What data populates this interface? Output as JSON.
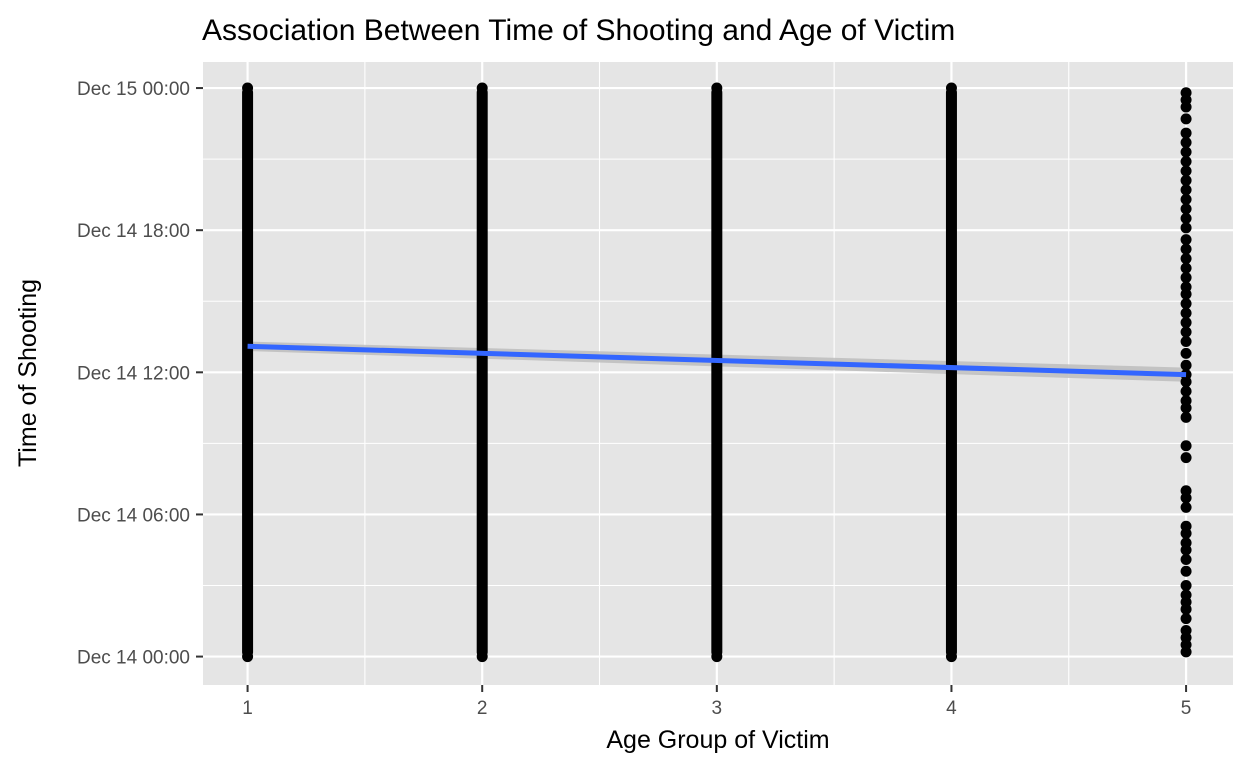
{
  "chart_data": {
    "type": "scatter",
    "title": "Association Between Time of Shooting and Age of Victim",
    "xlabel": "Age Group of Victim",
    "ylabel": "Time of Shooting",
    "x_ticks": [
      {
        "value": 1,
        "label": "1"
      },
      {
        "value": 2,
        "label": "2"
      },
      {
        "value": 3,
        "label": "3"
      },
      {
        "value": 4,
        "label": "4"
      },
      {
        "value": 5,
        "label": "5"
      }
    ],
    "y_ticks": [
      {
        "value": 0,
        "label": "Dec 14 00:00"
      },
      {
        "value": 6,
        "label": "Dec 14 06:00"
      },
      {
        "value": 12,
        "label": "Dec 14 12:00"
      },
      {
        "value": 18,
        "label": "Dec 14 18:00"
      },
      {
        "value": 24,
        "label": "Dec 15 00:00"
      }
    ],
    "xlim": [
      0.81,
      5.2
    ],
    "ylim": [
      -1.2,
      25.1
    ],
    "grid": true,
    "series": [
      {
        "kind": "points",
        "points": [
          {
            "x": 1,
            "y_range": [
              0,
              24
            ],
            "density": "dense"
          },
          {
            "x": 2,
            "y_range": [
              0,
              24
            ],
            "density": "dense"
          },
          {
            "x": 3,
            "y_range": [
              0,
              24
            ],
            "density": "dense"
          },
          {
            "x": 4,
            "y_range": [
              0,
              24
            ],
            "density": "dense"
          },
          {
            "x": 5,
            "y_values": [
              0.2,
              0.5,
              0.8,
              1.1,
              1.6,
              2.0,
              2.3,
              2.6,
              3.0,
              3.6,
              4.1,
              4.5,
              4.8,
              5.2,
              5.5,
              6.3,
              6.7,
              7.0,
              8.4,
              8.9,
              10.1,
              10.5,
              10.8,
              11.2,
              11.6,
              11.9,
              12.3,
              12.8,
              13.3,
              13.7,
              14.1,
              14.5,
              14.9,
              15.3,
              15.6,
              16.0,
              16.4,
              16.8,
              17.2,
              17.6,
              18.1,
              18.5,
              18.9,
              19.3,
              19.7,
              20.1,
              20.5,
              20.9,
              21.3,
              21.7,
              22.1,
              22.7,
              23.2,
              23.5,
              23.8
            ]
          }
        ],
        "color": "#000000"
      },
      {
        "kind": "trend",
        "method": "linear",
        "x": [
          1,
          5
        ],
        "y": [
          13.1,
          11.9
        ],
        "ci_low": [
          12.9,
          11.6
        ],
        "ci_high": [
          13.3,
          12.2
        ],
        "color": "#3366ff",
        "band_color": "#bdbdbd"
      }
    ],
    "colors": {
      "panel_background": "#e5e5e5",
      "gridline": "#ffffff",
      "tick": "#333333"
    }
  }
}
